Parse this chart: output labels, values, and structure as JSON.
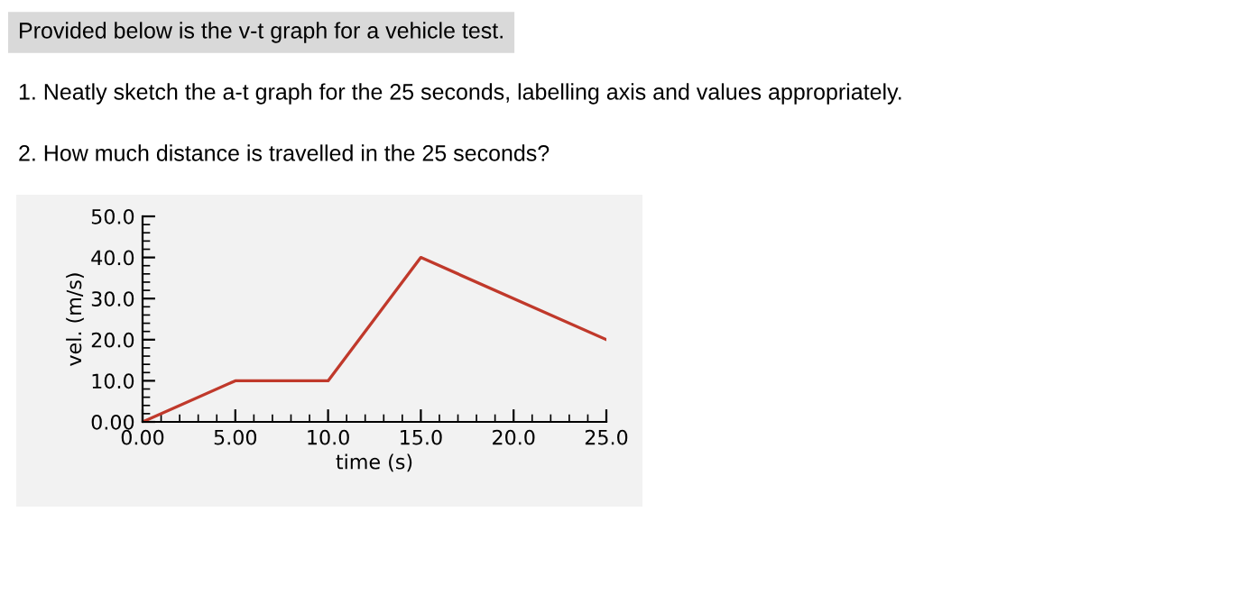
{
  "chart_data": {
    "type": "line",
    "title": "Provided below is the v-t graph for a vehicle test.",
    "annotations": [
      "1. Neatly sketch the a-t graph for the 25 seconds, labelling axis and values appropriately.",
      "2. How much distance is travelled in the 25 seconds?"
    ],
    "xlabel": "time (s)",
    "ylabel": "vel. (m/s)",
    "x": [
      0,
      5,
      10,
      15,
      25
    ],
    "series": [
      {
        "color": "#c0392b",
        "values": [
          0,
          10,
          10,
          40,
          20
        ]
      }
    ],
    "xlim": [
      0,
      25
    ],
    "ylim": [
      0,
      50
    ],
    "xticks": [
      {
        "value": 0,
        "label": "0.00"
      },
      {
        "value": 5,
        "label": "5.00"
      },
      {
        "value": 10,
        "label": "10.0"
      },
      {
        "value": 15,
        "label": "15.0"
      },
      {
        "value": 20,
        "label": "20.0"
      },
      {
        "value": 25,
        "label": "25.0"
      }
    ],
    "yticks": [
      {
        "value": 0,
        "label": "0.00"
      },
      {
        "value": 10,
        "label": "10.0"
      },
      {
        "value": 20,
        "label": "20.0"
      },
      {
        "value": 30,
        "label": "30.0"
      },
      {
        "value": 40,
        "label": "40.0"
      },
      {
        "value": 50,
        "label": "50.0"
      }
    ],
    "grid": false,
    "marker": "none",
    "line_style": "solid"
  }
}
